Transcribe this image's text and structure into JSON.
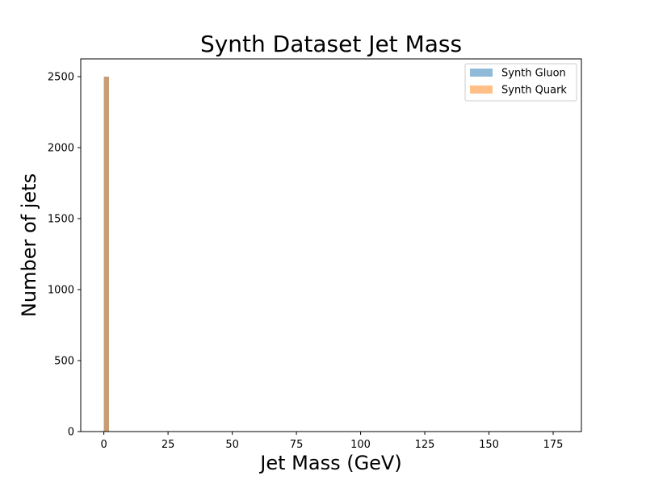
{
  "chart_data": {
    "type": "bar",
    "title": "Synth Dataset Jet Mass",
    "xlabel": "Jet Mass (GeV)",
    "ylabel": "Number of jets",
    "xlim": [
      -9,
      186
    ],
    "ylim": [
      0,
      2625
    ],
    "xticks": [
      0,
      25,
      50,
      75,
      100,
      125,
      150,
      175
    ],
    "yticks": [
      0,
      500,
      1000,
      1500,
      2000,
      2500
    ],
    "bin_width": 2,
    "grid": false,
    "legend_position": "top-right",
    "series": [
      {
        "name": "Synth Gluon",
        "color": "#1f77b4",
        "opacity": 0.5,
        "bins": [
          {
            "x0": 0,
            "x1": 2,
            "count": 2500
          }
        ]
      },
      {
        "name": "Synth Quark",
        "color": "#ff7f0e",
        "opacity": 0.5,
        "bins": [
          {
            "x0": 0,
            "x1": 2,
            "count": 2500
          }
        ]
      }
    ]
  }
}
